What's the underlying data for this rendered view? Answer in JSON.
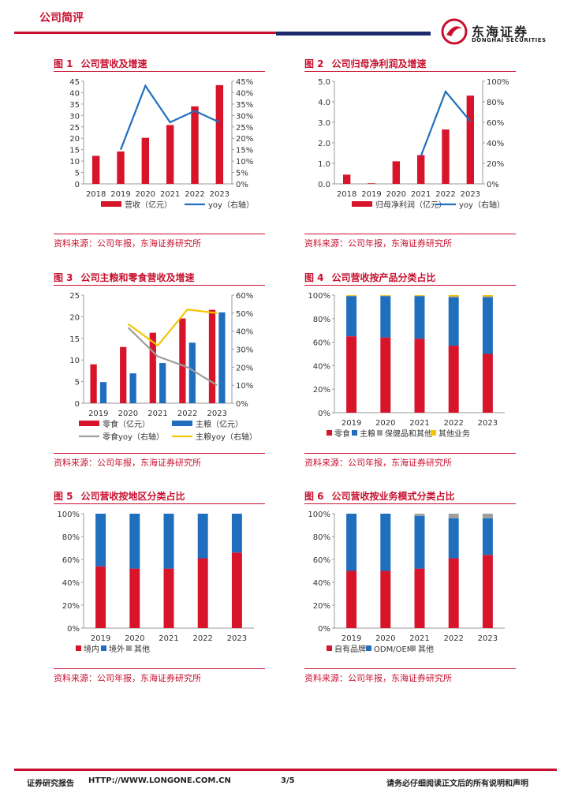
{
  "header": {
    "title": "公司简评",
    "logo_cn": "东海证券",
    "logo_en": "DONGHAI SECURITIES"
  },
  "colors": {
    "red": "#d7142a",
    "blue": "#1f6fbe",
    "gray": "#9e9e9e",
    "yellow": "#f5c400",
    "brand": "#c8102e"
  },
  "figures": [
    {
      "num": "图 1",
      "title": "公司营收及增速",
      "source": "资料来源：公司年报，东海证券研究所"
    },
    {
      "num": "图 2",
      "title": "公司归母净利润及增速",
      "source": "资料来源：公司年报，东海证券研究所"
    },
    {
      "num": "图 3",
      "title": "公司主粮和零食营收及增速",
      "source": "资料来源：公司年报，东海证券研究所"
    },
    {
      "num": "图 4",
      "title": "公司营收按产品分类占比",
      "source": "资料来源：公司年报，东海证券研究所"
    },
    {
      "num": "图 5",
      "title": "公司营收按地区分类占比",
      "source": "资料来源：公司年报，东海证券研究所"
    },
    {
      "num": "图 6",
      "title": "公司营收按业务模式分类占比",
      "source": "资料来源：公司年报，东海证券研究所"
    }
  ],
  "chart_data": [
    {
      "id": "fig1",
      "type": "bar+line",
      "categories": [
        "2018",
        "2019",
        "2020",
        "2021",
        "2022",
        "2023"
      ],
      "series": [
        {
          "name": "营收（亿元）",
          "axis": "left",
          "kind": "bar",
          "color": "#d7142a",
          "values": [
            12.3,
            14.2,
            20.2,
            25.8,
            34.0,
            43.3
          ]
        },
        {
          "name": "yoy（右轴）",
          "axis": "right",
          "kind": "line",
          "color": "#1f6fbe",
          "values": [
            null,
            15,
            43,
            27,
            32,
            27
          ]
        }
      ],
      "left_ticks": [
        "45",
        "40",
        "35",
        "30",
        "25",
        "20",
        "15",
        "10",
        "5",
        "0"
      ],
      "right_ticks": [
        "45%",
        "40%",
        "35%",
        "30%",
        "25%",
        "20%",
        "15%",
        "10%",
        "5%",
        "0%"
      ],
      "ylim": [
        0,
        45
      ],
      "y2lim": [
        0,
        45
      ]
    },
    {
      "id": "fig2",
      "type": "bar+line",
      "categories": [
        "2018",
        "2019",
        "2020",
        "2021",
        "2022",
        "2023"
      ],
      "series": [
        {
          "name": "归母净利润（亿元）",
          "axis": "left",
          "kind": "bar",
          "color": "#d7142a",
          "values": [
            0.45,
            0.03,
            1.1,
            1.4,
            2.65,
            4.3
          ]
        },
        {
          "name": "yoy（右轴）",
          "axis": "right",
          "kind": "line",
          "color": "#1f6fbe",
          "values": [
            null,
            null,
            null,
            27,
            90,
            61
          ]
        }
      ],
      "left_ticks": [
        "5.0",
        "4.0",
        "3.0",
        "2.0",
        "1.0",
        "0.0"
      ],
      "right_ticks": [
        "100%",
        "80%",
        "60%",
        "40%",
        "20%",
        "0%"
      ],
      "ylim": [
        0,
        5
      ],
      "y2lim": [
        0,
        100
      ]
    },
    {
      "id": "fig3",
      "type": "bar+line",
      "categories": [
        "2019",
        "2020",
        "2021",
        "2022",
        "2023"
      ],
      "series": [
        {
          "name": "零食（亿元）",
          "axis": "left",
          "kind": "bar",
          "color": "#d7142a",
          "values": [
            9.0,
            13.0,
            16.3,
            19.6,
            21.6
          ]
        },
        {
          "name": "主粮（亿元）",
          "axis": "left",
          "kind": "bar",
          "color": "#1f6fbe",
          "values": [
            4.9,
            6.9,
            9.3,
            14.0,
            21.0
          ]
        },
        {
          "name": "零食yoy（右轴）",
          "axis": "right",
          "kind": "line",
          "color": "#9e9e9e",
          "values": [
            null,
            42,
            26,
            20,
            10
          ]
        },
        {
          "name": "主粮yoy（右轴）",
          "axis": "right",
          "kind": "line",
          "color": "#f5c400",
          "values": [
            null,
            44,
            32,
            52,
            50
          ]
        }
      ],
      "left_ticks": [
        "25",
        "20",
        "15",
        "10",
        "5",
        "0"
      ],
      "right_ticks": [
        "60%",
        "50%",
        "40%",
        "30%",
        "20%",
        "10%",
        "0%"
      ],
      "ylim": [
        0,
        25
      ],
      "y2lim": [
        0,
        60
      ]
    },
    {
      "id": "fig4",
      "type": "stacked-bar-100",
      "categories": [
        "2019",
        "2020",
        "2021",
        "2022",
        "2023"
      ],
      "series": [
        {
          "name": "零食",
          "color": "#d7142a",
          "values": [
            65,
            64,
            63,
            57,
            50
          ]
        },
        {
          "name": "主粮",
          "color": "#1f6fbe",
          "values": [
            34,
            35,
            36,
            41,
            48
          ]
        },
        {
          "name": "保健品和其他",
          "color": "#9e9e9e",
          "values": [
            0.5,
            0.5,
            0.5,
            1,
            1
          ]
        },
        {
          "name": "其他业务",
          "color": "#f5c400",
          "values": [
            0.5,
            0.5,
            0.5,
            1,
            1
          ]
        }
      ],
      "ticks": [
        "100%",
        "80%",
        "60%",
        "40%",
        "20%",
        "0%"
      ]
    },
    {
      "id": "fig5",
      "type": "stacked-bar-100",
      "categories": [
        "2019",
        "2020",
        "2021",
        "2022",
        "2023"
      ],
      "series": [
        {
          "name": "境内",
          "color": "#d7142a",
          "values": [
            54,
            52,
            52,
            61,
            66
          ]
        },
        {
          "name": "境外",
          "color": "#1f6fbe",
          "values": [
            46,
            48,
            48,
            39,
            34
          ]
        },
        {
          "name": "其他",
          "color": "#9e9e9e",
          "values": [
            0,
            0,
            0,
            0,
            0
          ]
        }
      ],
      "ticks": [
        "100%",
        "80%",
        "60%",
        "40%",
        "20%",
        "0%"
      ]
    },
    {
      "id": "fig6",
      "type": "stacked-bar-100",
      "categories": [
        "2019",
        "2020",
        "2021",
        "2022",
        "2023"
      ],
      "series": [
        {
          "name": "自有品牌",
          "color": "#d7142a",
          "values": [
            50,
            50,
            52,
            61,
            64
          ]
        },
        {
          "name": "ODM/OEM",
          "color": "#1f6fbe",
          "values": [
            50,
            50,
            46,
            35,
            32
          ]
        },
        {
          "name": "其他",
          "color": "#9e9e9e",
          "values": [
            0,
            0,
            2,
            4,
            4
          ]
        }
      ],
      "ticks": [
        "100%",
        "80%",
        "60%",
        "40%",
        "20%",
        "0%"
      ]
    }
  ],
  "footer": {
    "left": "证券研究报告",
    "url": "HTTP://WWW.LONGONE.COM.CN",
    "page": "3/5",
    "right": "请务必仔细阅读正文后的所有说明和声明"
  }
}
